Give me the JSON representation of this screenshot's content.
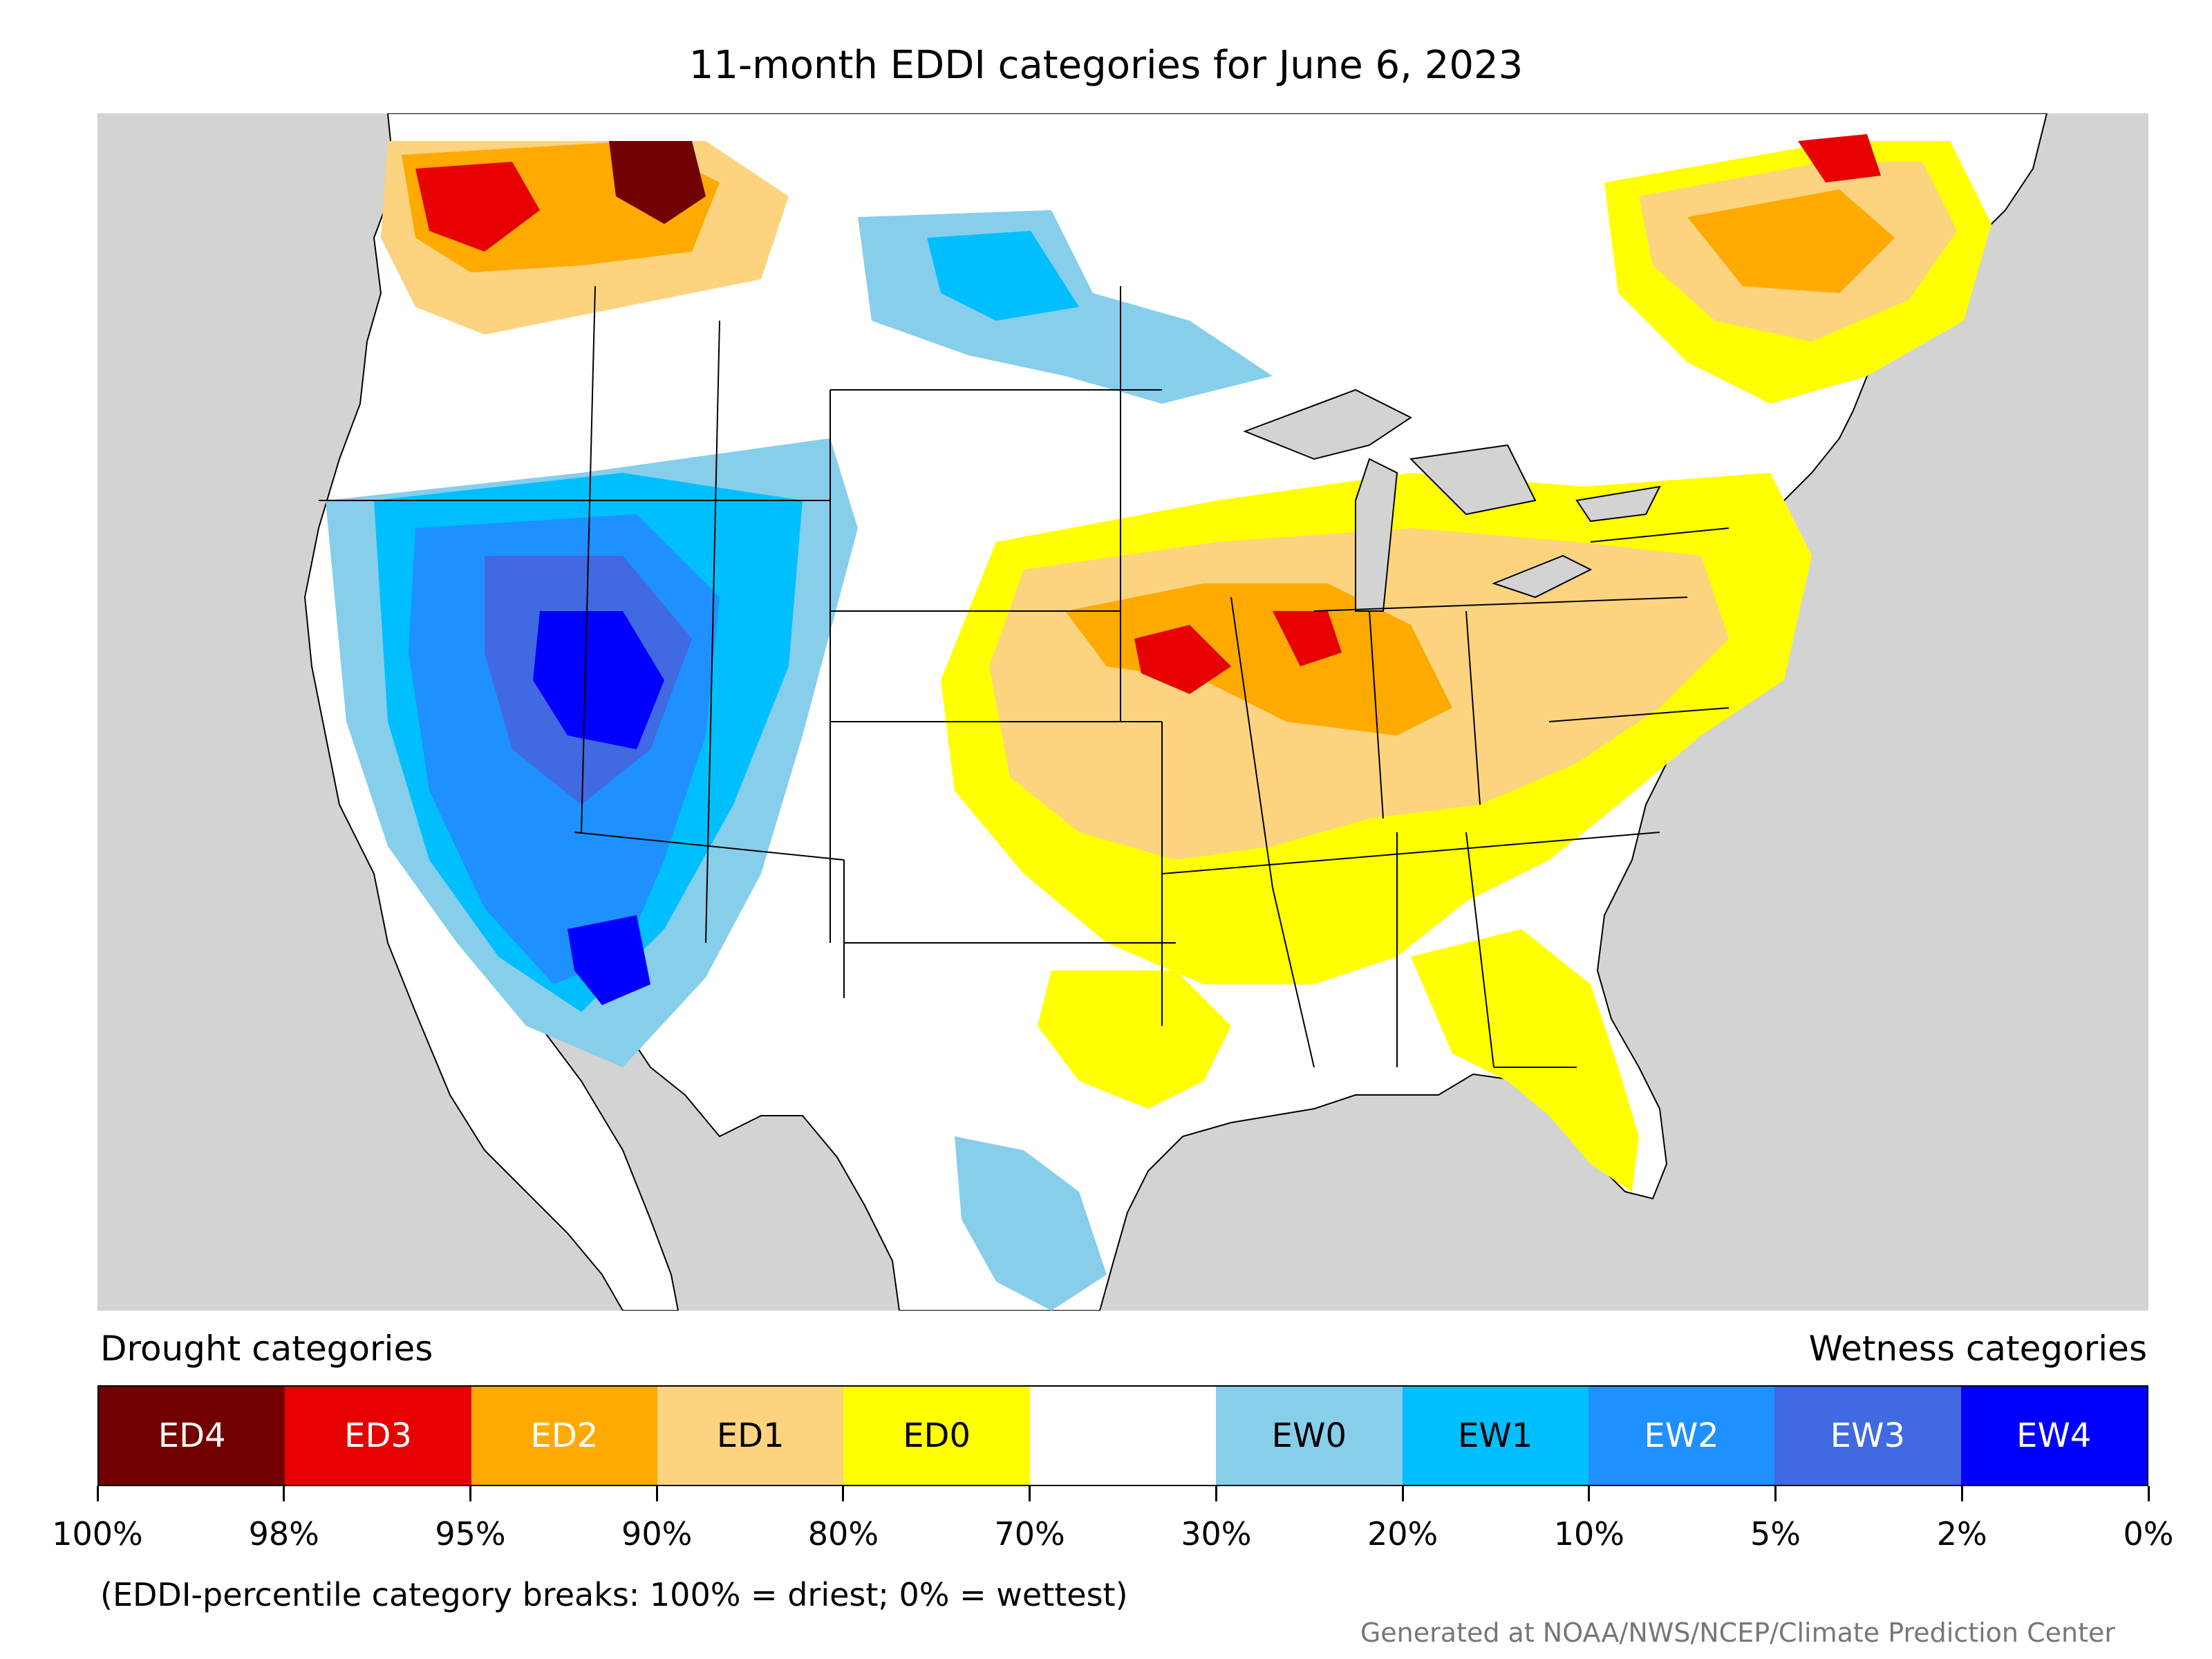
{
  "title": "11-month EDDI categories for June 6, 2023",
  "drought_heading": "Drought categories",
  "wetness_heading": "Wetness categories",
  "categories": [
    {
      "label": "ED4",
      "color": "#730000",
      "text_color": "#ffffff"
    },
    {
      "label": "ED3",
      "color": "#e60000",
      "text_color": "#ffffff"
    },
    {
      "label": "ED2",
      "color": "#ffaa00",
      "text_color": "#ffffff"
    },
    {
      "label": "ED1",
      "color": "#fcd37f",
      "text_color": "#000000"
    },
    {
      "label": "ED0",
      "color": "#ffff00",
      "text_color": "#000000"
    },
    {
      "label": "",
      "color": "#ffffff",
      "text_color": "#000000"
    },
    {
      "label": "EW0",
      "color": "#87ceeb",
      "text_color": "#000000"
    },
    {
      "label": "EW1",
      "color": "#00bfff",
      "text_color": "#000000"
    },
    {
      "label": "EW2",
      "color": "#1e90ff",
      "text_color": "#ffffff"
    },
    {
      "label": "EW3",
      "color": "#4169e1",
      "text_color": "#ffffff"
    },
    {
      "label": "EW4",
      "color": "#0000ff",
      "text_color": "#ffffff"
    }
  ],
  "tick_labels": [
    "100%",
    "98%",
    "95%",
    "90%",
    "80%",
    "70%",
    "30%",
    "20%",
    "10%",
    "5%",
    "2%",
    "0%"
  ],
  "note": "(EDDI-percentile category breaks: 100% = driest; 0% = wettest)",
  "credit": "Generated at NOAA/NWS/NCEP/Climate Prediction Center",
  "map_colors": {
    "ocean": "#d3d3d3",
    "land": "#ffffff"
  }
}
